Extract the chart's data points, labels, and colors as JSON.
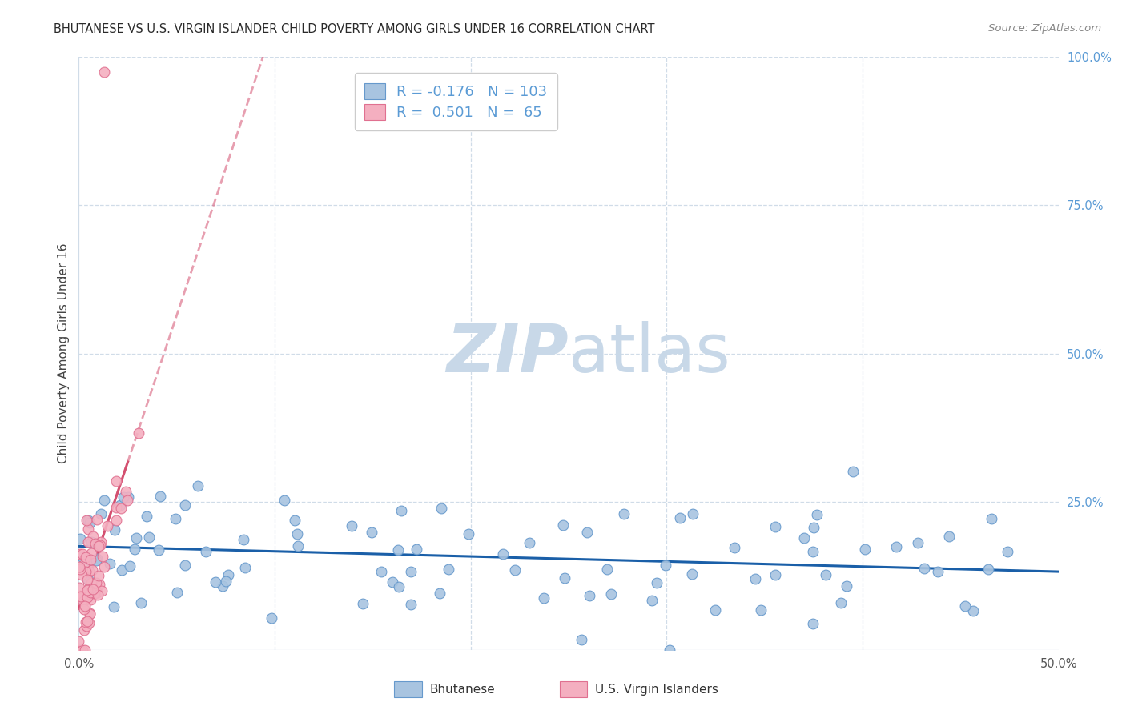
{
  "title": "BHUTANESE VS U.S. VIRGIN ISLANDER CHILD POVERTY AMONG GIRLS UNDER 16 CORRELATION CHART",
  "source": "Source: ZipAtlas.com",
  "ylabel": "Child Poverty Among Girls Under 16",
  "xlim": [
    0.0,
    0.5
  ],
  "ylim": [
    0.0,
    1.0
  ],
  "xticks": [
    0.0,
    0.1,
    0.2,
    0.3,
    0.4,
    0.5
  ],
  "xticklabels": [
    "0.0%",
    "",
    "",
    "",
    "",
    "50.0%"
  ],
  "yticks_right": [
    0.0,
    0.25,
    0.5,
    0.75,
    1.0
  ],
  "yticklabels_right": [
    "",
    "25.0%",
    "50.0%",
    "75.0%",
    "100.0%"
  ],
  "blue_scatter_color": "#a8c4e0",
  "blue_edge_color": "#6699cc",
  "pink_scatter_color": "#f4afc0",
  "pink_edge_color": "#e07090",
  "blue_line_color": "#1a5fa8",
  "pink_line_color": "#d45070",
  "grid_color": "#d0dce8",
  "bg_color": "#ffffff",
  "R_blue": -0.176,
  "N_blue": 103,
  "R_pink": 0.501,
  "N_pink": 65,
  "label_blue": "Bhutanese",
  "label_pink": "U.S. Virgin Islanders",
  "title_color": "#2a2a2a",
  "source_color": "#888888",
  "right_tick_color": "#5b9bd5",
  "left_label_color": "#444444",
  "watermark_zip": "ZIP",
  "watermark_atlas": "atlas",
  "watermark_color": "#c8d8e8",
  "legend_color": "#5b9bd5"
}
